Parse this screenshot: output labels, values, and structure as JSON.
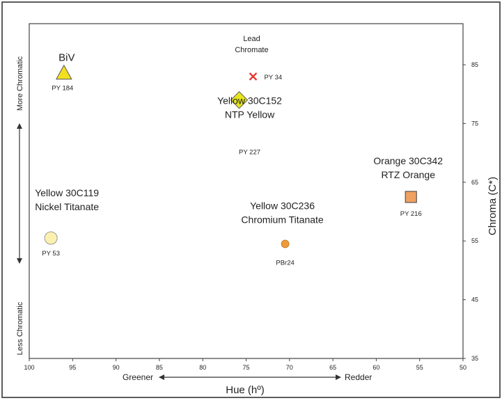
{
  "chart_data": {
    "type": "scatter",
    "title": "",
    "xlabel": "Hue (hº)",
    "ylabel": "Chroma  (C*)",
    "xlim": [
      100,
      50
    ],
    "ylim": [
      35,
      92
    ],
    "x_reversed": true,
    "grid": false,
    "x_ticks": [
      100,
      95,
      90,
      85,
      80,
      75,
      70,
      65,
      60,
      55,
      50
    ],
    "y_ticks": [
      35,
      45,
      55,
      65,
      75,
      85
    ],
    "x_direction": {
      "left": "Greener",
      "right": "Redder"
    },
    "y_direction": {
      "top": "More Chromatic",
      "bottom": "Less Chromatic"
    },
    "points": [
      {
        "id": "biv",
        "x": 96,
        "y": 83.5,
        "marker": "triangle",
        "color": "#F2E020",
        "name_lines": [
          "BiV"
        ],
        "code": "PY 184"
      },
      {
        "id": "lead-chromate",
        "x": 74.2,
        "y": 83,
        "marker": "x",
        "color": "#E8302A",
        "name_lines": [
          "Lead",
          "Chromate"
        ],
        "code": "PY 34"
      },
      {
        "id": "ntp-yellow",
        "x": 75.8,
        "y": 79,
        "marker": "diamond",
        "color": "#E6E41C",
        "name_lines": [
          "Yellow 30C152",
          "NTP Yellow"
        ],
        "code": "PY 227"
      },
      {
        "id": "rtz-orange",
        "x": 56,
        "y": 62.5,
        "marker": "square",
        "color": "#F0A060",
        "name_lines": [
          "Orange 30C342",
          "RTZ Orange"
        ],
        "code": "PY 216"
      },
      {
        "id": "nickel-titanate",
        "x": 97.5,
        "y": 55.5,
        "marker": "circle",
        "color": "#FCF0B0",
        "name_lines": [
          "Yellow 30C119",
          "Nickel Titanate"
        ],
        "code": "PY 53"
      },
      {
        "id": "chromium-titanate",
        "x": 70.5,
        "y": 54.5,
        "marker": "circle-small",
        "color": "#EE9A3A",
        "name_lines": [
          "Yellow 30C236",
          "Chromium Titanate"
        ],
        "code": "PBr24"
      }
    ]
  }
}
